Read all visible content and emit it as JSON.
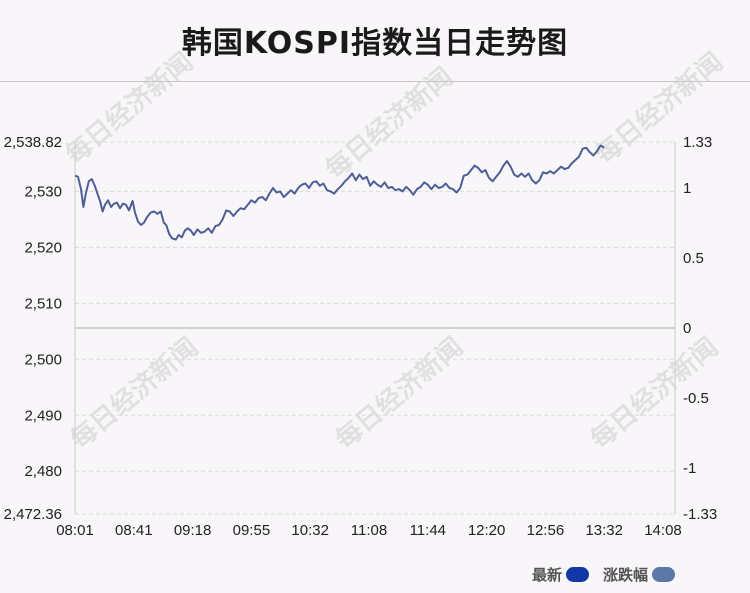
{
  "title": "韩国KOSPI指数当日走势图",
  "watermark": "每日经济新闻",
  "legend": [
    {
      "label": "最新",
      "color": "#1238a6"
    },
    {
      "label": "涨跌幅",
      "color": "#5b78a8"
    }
  ],
  "colors": {
    "line": "#4d5f94",
    "grid": "#dcdcdc",
    "baseline": "#c4c4c4"
  },
  "chart_data": {
    "type": "line",
    "x_ticks": [
      "08:01",
      "08:41",
      "09:18",
      "09:55",
      "10:32",
      "11:08",
      "11:44",
      "12:20",
      "12:56",
      "13:32",
      "14:08"
    ],
    "y_left_ticks": [
      "2,538.82",
      "2,530",
      "2,520",
      "2,510",
      "2,500",
      "2,490",
      "2,480",
      "2,472.36"
    ],
    "y_left_values": [
      2538.82,
      2530,
      2520,
      2510,
      2500,
      2490,
      2480,
      2472.36
    ],
    "y_right_ticks": [
      "1.33",
      "1",
      "0.5",
      "0",
      "-0.5",
      "-1",
      "-1.33"
    ],
    "y_right_values": [
      1.33,
      1,
      0.5,
      0,
      -0.5,
      -1,
      -1.33
    ],
    "ylim_left": [
      2472.36,
      2538.82
    ],
    "ylim_right": [
      -1.33,
      1.33
    ],
    "x_range": [
      0,
      100
    ],
    "series": [
      {
        "values": [
          [
            0,
            2532.8
          ],
          [
            0.5,
            2532.6
          ],
          [
            1,
            2530.4
          ],
          [
            1.4,
            2527.2
          ],
          [
            1.8,
            2529.6
          ],
          [
            2.3,
            2531.8
          ],
          [
            2.8,
            2532.2
          ],
          [
            3.3,
            2531.0
          ],
          [
            3.8,
            2529.4
          ],
          [
            4.2,
            2528.2
          ],
          [
            4.6,
            2526.4
          ],
          [
            5,
            2527.6
          ],
          [
            5.5,
            2528.4
          ],
          [
            6,
            2527.2
          ],
          [
            6.5,
            2527.8
          ],
          [
            7,
            2528.0
          ],
          [
            7.5,
            2527.0
          ],
          [
            8,
            2527.8
          ],
          [
            8.5,
            2527.6
          ],
          [
            9,
            2526.6
          ],
          [
            9.6,
            2528.3
          ],
          [
            10,
            2526.2
          ],
          [
            10.5,
            2524.6
          ],
          [
            11,
            2524.0
          ],
          [
            11.5,
            2524.4
          ],
          [
            12,
            2525.4
          ],
          [
            12.6,
            2526.2
          ],
          [
            13.2,
            2526.4
          ],
          [
            13.7,
            2526.0
          ],
          [
            14.3,
            2526.4
          ],
          [
            14.8,
            2524.4
          ],
          [
            15.2,
            2524.0
          ],
          [
            15.7,
            2522.4
          ],
          [
            16.2,
            2521.6
          ],
          [
            16.8,
            2521.4
          ],
          [
            17.3,
            2522.2
          ],
          [
            17.8,
            2521.8
          ],
          [
            18.3,
            2523.0
          ],
          [
            18.8,
            2523.4
          ],
          [
            19.3,
            2523.0
          ],
          [
            19.8,
            2522.2
          ],
          [
            20.4,
            2523.2
          ],
          [
            21,
            2522.6
          ],
          [
            21.6,
            2522.8
          ],
          [
            22.2,
            2523.4
          ],
          [
            22.8,
            2522.6
          ],
          [
            23.4,
            2523.8
          ],
          [
            24,
            2524.0
          ],
          [
            24.6,
            2525.0
          ],
          [
            25.2,
            2526.6
          ],
          [
            25.8,
            2526.4
          ],
          [
            26.4,
            2525.6
          ],
          [
            27,
            2526.4
          ],
          [
            27.6,
            2527.0
          ],
          [
            28.2,
            2526.8
          ],
          [
            28.8,
            2527.6
          ],
          [
            29.4,
            2528.4
          ],
          [
            30,
            2528.0
          ],
          [
            30.6,
            2528.8
          ],
          [
            31.2,
            2529.0
          ],
          [
            31.8,
            2528.4
          ],
          [
            32.4,
            2529.6
          ],
          [
            33,
            2530.6
          ],
          [
            33.6,
            2529.8
          ],
          [
            34.2,
            2530.0
          ],
          [
            34.8,
            2529.0
          ],
          [
            35.4,
            2529.6
          ],
          [
            36,
            2530.2
          ],
          [
            36.6,
            2529.6
          ],
          [
            37.2,
            2530.6
          ],
          [
            37.8,
            2531.2
          ],
          [
            38.4,
            2531.4
          ],
          [
            39,
            2530.6
          ],
          [
            39.6,
            2531.6
          ],
          [
            40.2,
            2531.8
          ],
          [
            40.8,
            2531.0
          ],
          [
            41.4,
            2531.4
          ],
          [
            42,
            2530.2
          ],
          [
            42.6,
            2530.0
          ],
          [
            43.2,
            2529.6
          ],
          [
            43.8,
            2530.4
          ],
          [
            44.4,
            2531.0
          ],
          [
            45,
            2531.8
          ],
          [
            45.6,
            2532.4
          ],
          [
            46.2,
            2533.2
          ],
          [
            46.8,
            2532.0
          ],
          [
            47.4,
            2533.0
          ],
          [
            48,
            2532.2
          ],
          [
            48.6,
            2532.6
          ],
          [
            49.2,
            2531.0
          ],
          [
            49.8,
            2531.8
          ],
          [
            50.4,
            2531.2
          ],
          [
            51,
            2530.8
          ],
          [
            51.6,
            2531.6
          ],
          [
            52.2,
            2530.6
          ],
          [
            52.8,
            2530.8
          ],
          [
            53.4,
            2530.2
          ],
          [
            54,
            2530.4
          ],
          [
            54.6,
            2530.0
          ],
          [
            55.2,
            2530.8
          ],
          [
            55.8,
            2530.2
          ],
          [
            56.4,
            2529.4
          ],
          [
            57,
            2530.4
          ],
          [
            57.6,
            2530.8
          ],
          [
            58.2,
            2531.6
          ],
          [
            58.8,
            2531.2
          ],
          [
            59.4,
            2530.4
          ],
          [
            60,
            2531.2
          ],
          [
            60.6,
            2530.6
          ],
          [
            61.2,
            2530.8
          ],
          [
            61.8,
            2531.4
          ],
          [
            62.4,
            2530.6
          ],
          [
            63,
            2530.4
          ],
          [
            63.6,
            2529.8
          ],
          [
            64.2,
            2530.6
          ],
          [
            64.8,
            2532.8
          ],
          [
            65.4,
            2533.0
          ],
          [
            66,
            2533.8
          ],
          [
            66.6,
            2534.6
          ],
          [
            67.2,
            2534.2
          ],
          [
            67.8,
            2533.4
          ],
          [
            68.4,
            2533.8
          ],
          [
            69,
            2532.4
          ],
          [
            69.6,
            2531.8
          ],
          [
            70.2,
            2532.6
          ],
          [
            70.8,
            2533.4
          ],
          [
            71.4,
            2534.6
          ],
          [
            72,
            2535.4
          ],
          [
            72.6,
            2534.4
          ],
          [
            73.2,
            2533.0
          ],
          [
            73.8,
            2532.6
          ],
          [
            74.4,
            2533.2
          ],
          [
            75,
            2532.6
          ],
          [
            75.6,
            2533.2
          ],
          [
            76.2,
            2532.0
          ],
          [
            76.8,
            2531.4
          ],
          [
            77.4,
            2532.0
          ],
          [
            78,
            2533.4
          ],
          [
            78.6,
            2533.2
          ],
          [
            79.2,
            2533.6
          ],
          [
            79.8,
            2533.2
          ],
          [
            80.4,
            2533.8
          ],
          [
            81,
            2534.4
          ],
          [
            81.6,
            2534.0
          ],
          [
            82.2,
            2534.2
          ],
          [
            82.8,
            2535.0
          ],
          [
            83.4,
            2535.6
          ],
          [
            84,
            2536.2
          ],
          [
            84.6,
            2537.6
          ],
          [
            85.2,
            2537.8
          ],
          [
            85.8,
            2537.0
          ],
          [
            86.4,
            2536.4
          ],
          [
            87,
            2537.2
          ],
          [
            87.6,
            2538.2
          ],
          [
            88.2,
            2537.8
          ]
        ]
      }
    ]
  }
}
